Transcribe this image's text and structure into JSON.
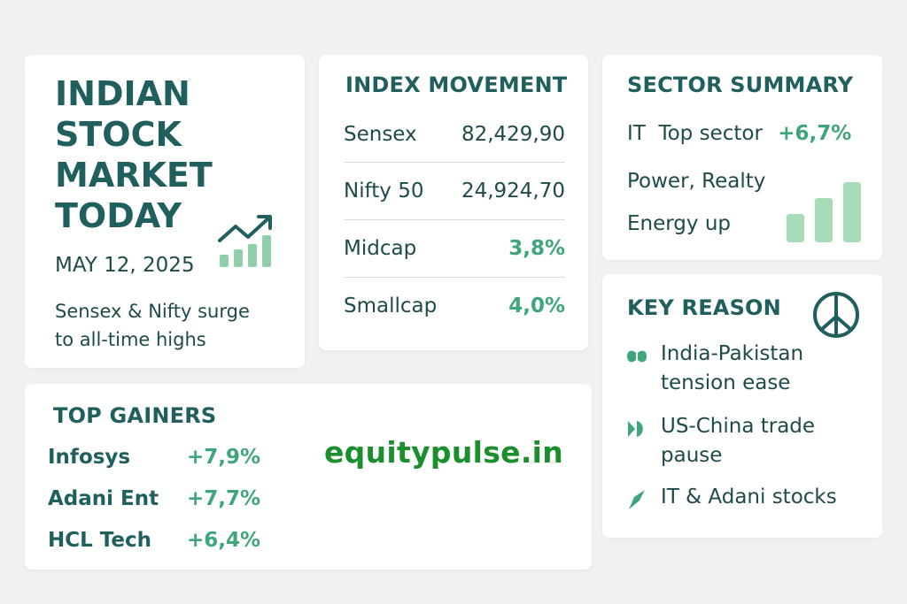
{
  "title_card": {
    "title_lines": [
      "INDIAN",
      "STOCK",
      "MARKET",
      "TODAY"
    ],
    "date": "MAY 12, 2025",
    "subtitle_lines": [
      "Sensex & Nifty surge",
      "to all-time highs"
    ],
    "icon": "growth-chart-icon"
  },
  "index_movement": {
    "heading": "INDEX MOVEMENT",
    "rows": [
      {
        "name": "Sensex",
        "value": "82,429,90"
      },
      {
        "name": "Nifty 50",
        "value": "24,924,70"
      },
      {
        "name": "Midcap",
        "value": "3,8%"
      },
      {
        "name": "Smallcap",
        "value": "4,0%"
      }
    ]
  },
  "sector_summary": {
    "heading": "SECTOR SUMMARY",
    "line1_label": "IT  Top sector",
    "line1_value": "+6,7%",
    "line2": "Power, Realty",
    "line3": "Energy up",
    "icon": "bar-chart-icon"
  },
  "key_reason": {
    "heading": "KEY REASON",
    "icon": "peace-icon",
    "items": [
      {
        "icon": "handshake-icon",
        "lines": [
          "India-Pakistan",
          "tension ease"
        ]
      },
      {
        "icon": "pause-icon",
        "lines": [
          "US-China trade",
          "pause"
        ]
      },
      {
        "icon": "rocket-icon",
        "lines": [
          "IT & Adani stocks"
        ]
      }
    ]
  },
  "top_gainers": {
    "heading": "TOP GAINERS",
    "rows": [
      {
        "name": "Infosys",
        "value": "+7,9%"
      },
      {
        "name": "Adani Ent",
        "value": "+7,7%"
      },
      {
        "name": "HCL Tech",
        "value": "+6,4%"
      }
    ]
  },
  "watermark": "equitypulse.in",
  "colors": {
    "heading": "#1f5f5d",
    "text": "#1f4a4a",
    "accent_green": "#3ea67a",
    "watermark": "#1b8f2d",
    "background": "#f0f2f1"
  }
}
